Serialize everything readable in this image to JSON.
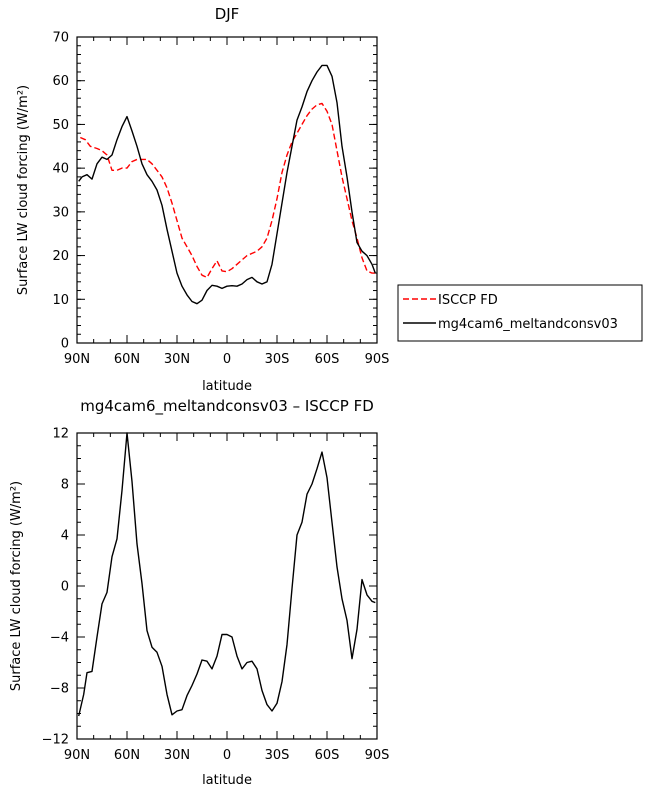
{
  "chart_data": [
    {
      "type": "line",
      "title": "DJF",
      "xlabel": "latitude",
      "ylabel": "Surface LW cloud forcing (W/m²)",
      "xlim": [
        -90,
        90
      ],
      "ylim": [
        0,
        70
      ],
      "x_tick_values": [
        -90,
        -60,
        -30,
        0,
        30,
        60,
        90
      ],
      "x_tick_labels": [
        "90N",
        "60N",
        "30N",
        "0",
        "30S",
        "60S",
        "90S"
      ],
      "y_tick_values": [
        0,
        10,
        20,
        30,
        40,
        50,
        60,
        70
      ],
      "y_tick_labels": [
        "0",
        "10",
        "20",
        "30",
        "40",
        "50",
        "60",
        "70"
      ],
      "legend": "outside-right",
      "series": [
        {
          "name": "ISCCP FD",
          "color": "#ff0000",
          "dash": "dashed",
          "x": [
            -88,
            -85,
            -82,
            -78,
            -75,
            -72,
            -69,
            -66,
            -63,
            -60,
            -57,
            -54,
            -51,
            -48,
            -45,
            -42,
            -39,
            -36,
            -33,
            -30,
            -27,
            -24,
            -21,
            -18,
            -15,
            -12,
            -9,
            -6,
            -3,
            0,
            3,
            6,
            9,
            12,
            15,
            18,
            21,
            24,
            27,
            30,
            33,
            36,
            39,
            42,
            45,
            48,
            51,
            54,
            57,
            60,
            63,
            66,
            69,
            72,
            75,
            78,
            81,
            84,
            87,
            89
          ],
          "y": [
            47,
            46.5,
            45,
            44.5,
            44,
            43,
            39.5,
            39.5,
            40,
            40,
            41.5,
            42,
            42,
            42,
            41,
            39.5,
            38,
            35.5,
            32,
            28,
            24,
            22,
            20,
            17.5,
            15.5,
            15,
            17,
            18.8,
            16.5,
            16.3,
            17,
            18,
            19,
            20,
            20.5,
            21,
            22,
            24,
            28,
            33,
            39,
            43,
            46,
            48,
            50,
            52,
            53.5,
            54.5,
            54.8,
            53,
            50,
            44,
            38,
            33,
            28,
            24,
            19.5,
            16.5,
            16,
            16
          ]
        },
        {
          "name": "mg4cam6_meltandconsv03",
          "color": "#000000",
          "dash": "solid",
          "x": [
            -89,
            -87,
            -84,
            -81,
            -78,
            -75,
            -72,
            -69,
            -66,
            -63,
            -60,
            -57,
            -54,
            -51,
            -48,
            -45,
            -42,
            -39,
            -36,
            -33,
            -30,
            -27,
            -24,
            -21,
            -18,
            -15,
            -12,
            -9,
            -6,
            -3,
            0,
            3,
            6,
            9,
            12,
            15,
            18,
            21,
            24,
            27,
            30,
            33,
            36,
            39,
            42,
            45,
            48,
            51,
            54,
            57,
            60,
            63,
            66,
            69,
            72,
            75,
            78,
            81,
            84,
            87,
            89
          ],
          "y": [
            37,
            38,
            38.5,
            37.5,
            41,
            42.5,
            42,
            43,
            46.5,
            49.5,
            51.8,
            48.5,
            45,
            41,
            38.5,
            37,
            35,
            31.5,
            26,
            21,
            16,
            13,
            11,
            9.5,
            9,
            9.8,
            12,
            13.2,
            13,
            12.5,
            13,
            13.1,
            13,
            13.5,
            14.5,
            15,
            14,
            13.5,
            14,
            18,
            25,
            32,
            39,
            45,
            51,
            54,
            57.5,
            60,
            62,
            63.5,
            63.5,
            61,
            55,
            45,
            38,
            30,
            23,
            21,
            20,
            18,
            16
          ]
        }
      ]
    },
    {
      "type": "line",
      "title": "mg4cam6_meltandconsv03 – ISCCP FD",
      "xlabel": "latitude",
      "ylabel": "Surface LW cloud forcing (W/m²)",
      "xlim": [
        -90,
        90
      ],
      "ylim": [
        -12,
        12
      ],
      "x_tick_values": [
        -90,
        -60,
        -30,
        0,
        30,
        60,
        90
      ],
      "x_tick_labels": [
        "90N",
        "60N",
        "30N",
        "0",
        "30S",
        "60S",
        "90S"
      ],
      "y_tick_values": [
        -12,
        -8,
        -4,
        0,
        4,
        8,
        12
      ],
      "y_tick_labels": [
        "−12",
        "−8",
        "−4",
        "0",
        "4",
        "8",
        "12"
      ],
      "series": [
        {
          "color": "#000000",
          "dash": "solid",
          "x": [
            -89,
            -86,
            -84,
            -81,
            -78,
            -75,
            -72,
            -69,
            -66,
            -63,
            -60,
            -57,
            -54,
            -51,
            -48,
            -45,
            -42,
            -39,
            -36,
            -33,
            -30,
            -27,
            -24,
            -21,
            -18,
            -15,
            -12,
            -9,
            -6,
            -3,
            0,
            3,
            6,
            9,
            12,
            15,
            18,
            21,
            24,
            27,
            30,
            33,
            36,
            39,
            42,
            45,
            48,
            51,
            54,
            57,
            60,
            63,
            66,
            69,
            72,
            75,
            78,
            81,
            84,
            87,
            89
          ],
          "y": [
            -10.2,
            -8.5,
            -6.8,
            -6.7,
            -4,
            -1.4,
            -0.5,
            2.3,
            3.7,
            7.5,
            12,
            8.2,
            3.3,
            0.2,
            -3.5,
            -4.8,
            -5.2,
            -6.3,
            -8.5,
            -10.1,
            -9.8,
            -9.7,
            -8.6,
            -7.8,
            -6.9,
            -5.8,
            -5.9,
            -6.5,
            -5.5,
            -3.8,
            -3.8,
            -4,
            -5.5,
            -6.5,
            -6,
            -5.9,
            -6.5,
            -8.2,
            -9.3,
            -9.8,
            -9.2,
            -7.5,
            -4.6,
            -0.2,
            4,
            5,
            7.2,
            8,
            9.2,
            10.5,
            8.5,
            5,
            1.5,
            -1,
            -2.7,
            -5.7,
            -3.4,
            0.5,
            -0.7,
            -1.2,
            -1.3
          ]
        }
      ]
    }
  ]
}
